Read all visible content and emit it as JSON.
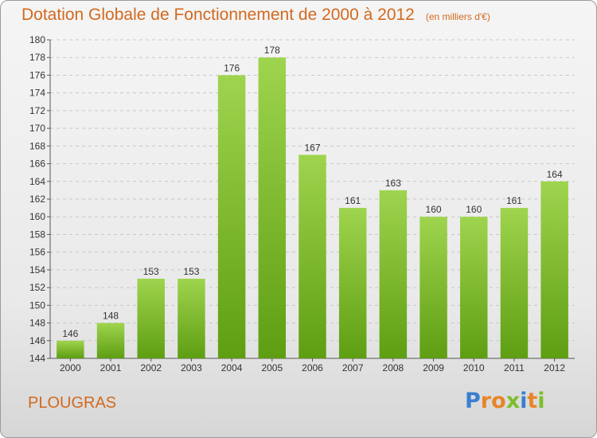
{
  "header": {
    "title": "Dotation Globale de Fonctionnement de 2000 à 2012",
    "subtitle": "(en milliers d'€)"
  },
  "footer": {
    "commune": "PLOUGRAS",
    "logo": [
      "P",
      "r",
      "o",
      "x",
      "i",
      "t",
      "i"
    ]
  },
  "colors": {
    "bar_light": "#9fd44e",
    "bar_dark": "#5e9e12",
    "title": "#d2691e",
    "logo": [
      "#3a7fd0",
      "#e8852a",
      "#e8852a",
      "#7cbf2a",
      "#3a7fd0",
      "#e8852a",
      "#7cbf2a"
    ]
  },
  "chart_data": {
    "type": "bar",
    "title": "Dotation Globale de Fonctionnement de 2000 à 2012",
    "subtitle": "(en milliers d'€)",
    "categories": [
      "2000",
      "2001",
      "2002",
      "2003",
      "2004",
      "2005",
      "2006",
      "2007",
      "2008",
      "2009",
      "2010",
      "2011",
      "2012"
    ],
    "values": [
      146,
      148,
      153,
      153,
      176,
      178,
      167,
      161,
      163,
      160,
      160,
      161,
      164
    ],
    "ylim": [
      144,
      180
    ],
    "ytick_step": 2,
    "grid": true
  }
}
